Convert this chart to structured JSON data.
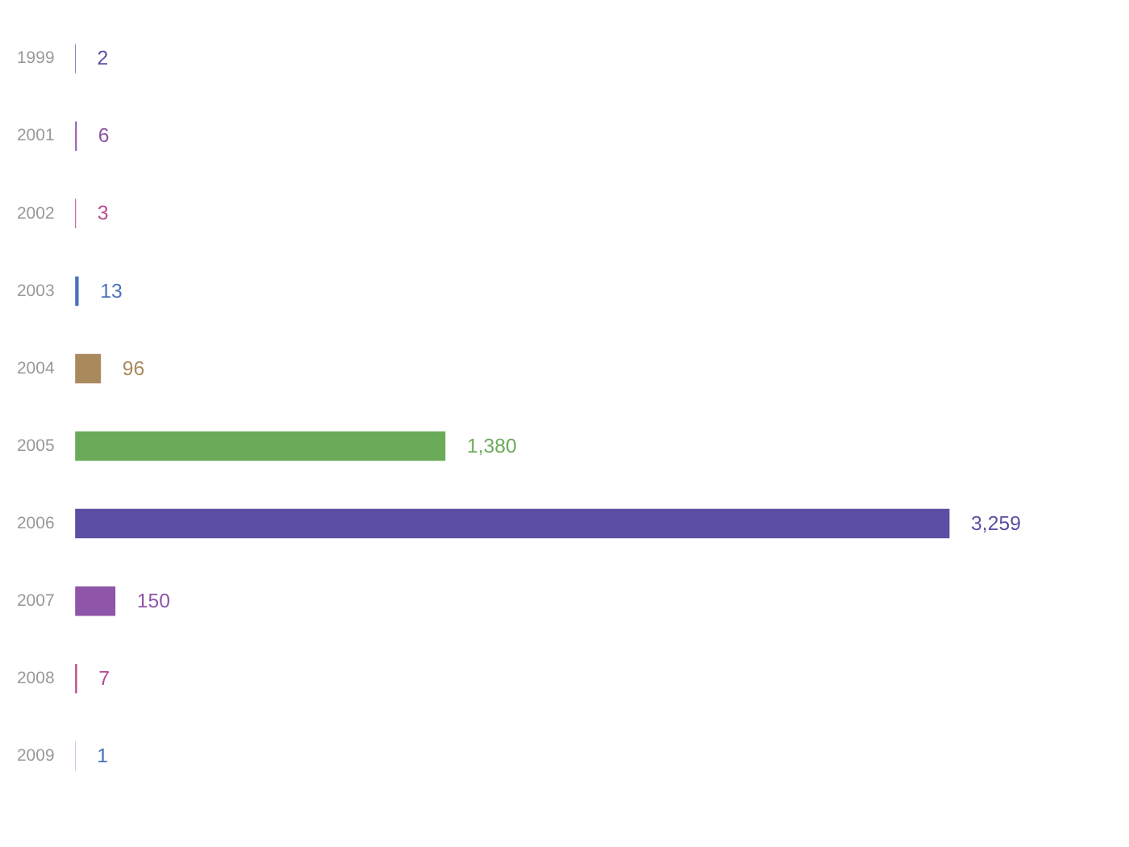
{
  "chart_data": {
    "type": "bar",
    "orientation": "horizontal",
    "categories": [
      "1999",
      "2001",
      "2002",
      "2003",
      "2004",
      "2005",
      "2006",
      "2007",
      "2008",
      "2009"
    ],
    "values": [
      2,
      6,
      3,
      13,
      96,
      1380,
      3259,
      150,
      7,
      1
    ],
    "colors": [
      "#5b4ea3",
      "#8f55a8",
      "#b9478f",
      "#4a72b8",
      "#a88a5c",
      "#6aab5a",
      "#5b4ea3",
      "#8f55a8",
      "#b9478f",
      "#4a72b8"
    ],
    "value_labels": [
      "2",
      "6",
      "3",
      "13",
      "96",
      "1,380",
      "3,259",
      "150",
      "7",
      "1"
    ],
    "grid": false,
    "legend": false
  }
}
